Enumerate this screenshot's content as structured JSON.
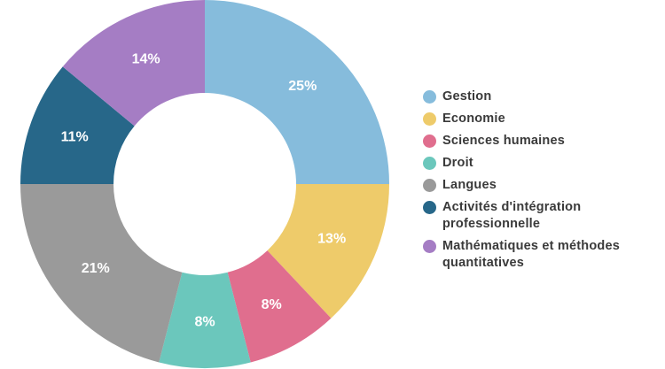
{
  "chart_data": {
    "type": "pie",
    "donut": true,
    "title": "",
    "legend_position": "right",
    "slices": [
      {
        "name": "Gestion",
        "value": 25,
        "label": "25%",
        "color": "#86bcdc"
      },
      {
        "name": "Economie",
        "value": 13,
        "label": "13%",
        "color": "#eecb6a"
      },
      {
        "name": "Sciences humaines",
        "value": 8,
        "label": "8%",
        "color": "#e06e8e"
      },
      {
        "name": "Droit",
        "value": 8,
        "label": "8%",
        "color": "#6bc7bc"
      },
      {
        "name": "Langues",
        "value": 21,
        "label": "21%",
        "color": "#9a9a9a"
      },
      {
        "name": "Activités d'intégration professionnelle",
        "value": 11,
        "label": "11%",
        "color": "#276789"
      },
      {
        "name": "Mathématiques et méthodes quantitatives",
        "value": 14,
        "label": "14%",
        "color": "#a57dc4"
      }
    ]
  }
}
